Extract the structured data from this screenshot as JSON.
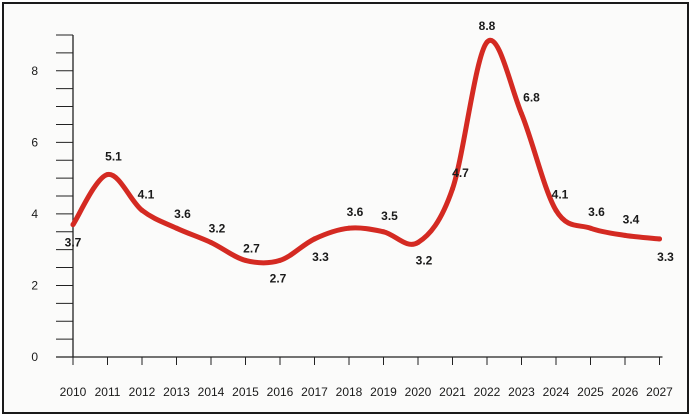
{
  "chart_data": {
    "type": "line",
    "title": "",
    "xlabel": "",
    "ylabel": "",
    "categories": [
      "2010",
      "2011",
      "2012",
      "2013",
      "2014",
      "2015",
      "2016",
      "2017",
      "2018",
      "2019",
      "2020",
      "2021",
      "2022",
      "2023",
      "2024",
      "2025",
      "2026",
      "2027"
    ],
    "series": [
      {
        "values": [
          3.7,
          5.1,
          4.1,
          3.6,
          3.2,
          2.7,
          2.7,
          3.3,
          3.6,
          3.5,
          3.2,
          4.7,
          8.8,
          6.8,
          4.1,
          3.6,
          3.4,
          3.3
        ]
      }
    ],
    "data_labels": [
      "3.7",
      "5.1",
      "4.1",
      "3.6",
      "3.2",
      "2.7",
      "2.7",
      "3.3",
      "3.6",
      "3.5",
      "3.2",
      "4.7",
      "8.8",
      "6.8",
      "4.1",
      "3.6",
      "3.4",
      "3.3"
    ],
    "ylim": [
      0,
      9.0
    ],
    "yticks": [
      0,
      2,
      4,
      6,
      8
    ],
    "y_minor_step": 0.5,
    "grid": false,
    "line_color": "#d42a22"
  }
}
